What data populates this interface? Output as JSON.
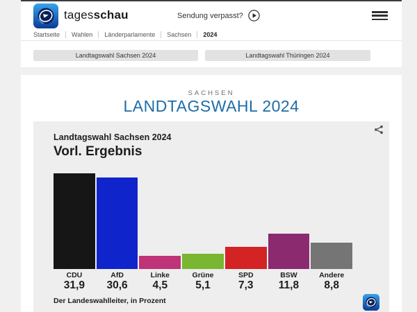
{
  "header": {
    "logo": {
      "text_regular": "tages",
      "text_bold": "schau"
    },
    "sendung_verpasst_label": "Sendung verpasst?",
    "breadcrumb": [
      {
        "label": "Startseite"
      },
      {
        "label": "Wahlen"
      },
      {
        "label": "Länderparlamente"
      },
      {
        "label": "Sachsen"
      },
      {
        "label": "2024"
      }
    ]
  },
  "tabs": [
    {
      "label": "Landtagswahl Sachsen 2024"
    },
    {
      "label": "Landtagswahl Thüringen 2024"
    }
  ],
  "main": {
    "kicker": "SACHSEN",
    "title": "LANDTAGSWAHL 2024",
    "title_color": "#1d6ca8"
  },
  "chart_data": {
    "type": "bar",
    "title": "Landtagswahl Sachsen 2024",
    "subtitle": "Vorl. Ergebnis",
    "source": "Der Landeswahlleiter, in Prozent",
    "unit": "Prozent",
    "categories": [
      "CDU",
      "AfD",
      "Linke",
      "Grüne",
      "SPD",
      "BSW",
      "Andere"
    ],
    "values": [
      31.9,
      30.6,
      4.5,
      5.1,
      7.3,
      11.8,
      8.8
    ],
    "value_labels": [
      "31,9",
      "30,6",
      "4,5",
      "5,1",
      "7,3",
      "11,8",
      "8,8"
    ],
    "colors": [
      "#161616",
      "#0f24cb",
      "#bf3378",
      "#79b631",
      "#d42324",
      "#8c2a70",
      "#757575"
    ],
    "ylim": [
      0,
      32
    ],
    "grid": false,
    "legend": false
  },
  "icons": {
    "play": "play-circle-icon",
    "menu": "hamburger-menu-icon",
    "share": "share-icon",
    "brand": "tagesschau-globe-logo"
  }
}
